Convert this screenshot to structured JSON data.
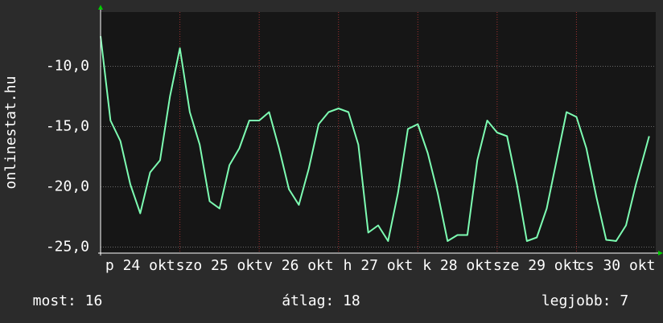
{
  "chart_data": {
    "type": "line",
    "ylabel": "onlinestat.hu",
    "x": [
      0,
      3,
      6,
      9,
      12,
      15,
      18,
      21,
      24,
      27,
      30,
      33,
      36,
      39,
      42,
      45,
      48,
      51,
      54,
      57,
      60,
      63,
      66,
      69,
      72,
      75,
      78,
      81,
      84,
      87,
      90,
      93,
      96,
      99,
      102,
      105,
      108,
      111,
      114,
      117,
      120,
      123,
      126,
      129,
      132,
      135,
      138,
      141,
      144,
      147,
      150,
      153,
      156,
      159,
      162,
      166
    ],
    "series": [
      {
        "color": "#7dfcb2",
        "values": [
          -7.5,
          -14.5,
          -16.2,
          -19.8,
          -22.2,
          -18.8,
          -17.8,
          -12.5,
          -8.5,
          -13.8,
          -16.5,
          -21.2,
          -21.8,
          -18.2,
          -16.8,
          -14.5,
          -14.5,
          -13.8,
          -16.8,
          -20.2,
          -21.5,
          -18.5,
          -14.8,
          -13.8,
          -13.5,
          -13.8,
          -16.5,
          -23.8,
          -23.2,
          -24.5,
          -20.5,
          -15.2,
          -14.8,
          -17.2,
          -20.5,
          -24.5,
          -24,
          -24,
          -17.8,
          -14.5,
          -15.5,
          -15.8,
          -19.8,
          -24.5,
          -24.2,
          -21.8,
          -17.8,
          -13.8,
          -14.2,
          -16.8,
          -20.8,
          -24.4,
          -24.5,
          -23.2,
          -19.8,
          -15.8
        ]
      }
    ],
    "xlim": [
      0,
      168
    ],
    "xticks": [
      {
        "value": 12,
        "label": "p 24 okt"
      },
      {
        "value": 36,
        "label": "szo 25 okt"
      },
      {
        "value": 60,
        "label": "v 26 okt"
      },
      {
        "value": 84,
        "label": "h 27 okt"
      },
      {
        "value": 108,
        "label": "k 28 okt"
      },
      {
        "value": 132,
        "label": "sze 29 okt"
      },
      {
        "value": 156,
        "label": "cs 30 okt"
      }
    ],
    "xgrid": [
      24,
      48,
      72,
      96,
      120,
      144
    ],
    "ylim": [
      -25.5,
      -5.5
    ],
    "yticks": [
      {
        "value": -25,
        "label": "-25,0"
      },
      {
        "value": -20,
        "label": "-20,0"
      },
      {
        "value": -15,
        "label": "-15,0"
      },
      {
        "value": -10,
        "label": "-10,0"
      }
    ],
    "grid": true,
    "footer": [
      "most: 16",
      "átlag: 18",
      "legjobb: 7"
    ]
  }
}
